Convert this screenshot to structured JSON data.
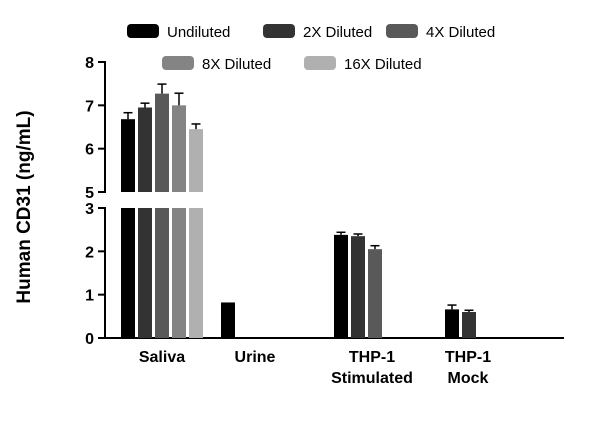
{
  "chart_data": {
    "type": "bar",
    "title": "",
    "ylabel": "Human CD31 (ng/mL)",
    "xlabel": "",
    "categories": [
      "Saliva",
      "Urine",
      "THP-1\nStimulated",
      "THP-1\nMock"
    ],
    "series": [
      {
        "name": "Undiluted",
        "color": "#000000",
        "values": [
          6.68,
          0.82,
          2.38,
          0.66
        ],
        "errors": [
          0.15,
          0,
          0.06,
          0.1
        ]
      },
      {
        "name": "2X Diluted",
        "color": "#333333",
        "values": [
          6.95,
          null,
          2.35,
          0.6
        ],
        "errors": [
          0.1,
          null,
          0.05,
          0.04
        ]
      },
      {
        "name": "4X Diluted",
        "color": "#595959",
        "values": [
          7.27,
          null,
          2.05,
          null
        ],
        "errors": [
          0.22,
          null,
          0.08,
          null
        ]
      },
      {
        "name": "8X Diluted",
        "color": "#848484",
        "values": [
          7.0,
          null,
          null,
          null
        ],
        "errors": [
          0.28,
          null,
          null,
          null
        ]
      },
      {
        "name": "16X Diluted",
        "color": "#b0b0b0",
        "values": [
          6.45,
          null,
          null,
          null
        ],
        "errors": [
          0.12,
          null,
          null,
          null
        ]
      }
    ],
    "axis_break": {
      "lower": [
        0,
        3
      ],
      "upper": [
        5,
        8
      ]
    },
    "yticks_lower": [
      0,
      1,
      2,
      3
    ],
    "yticks_upper": [
      5,
      6,
      7,
      8
    ],
    "legend_rows": [
      [
        0,
        1,
        2
      ],
      [
        3,
        4
      ]
    ],
    "grid": false,
    "legend_position": "top",
    "error_bars": "upper SEM caps"
  }
}
